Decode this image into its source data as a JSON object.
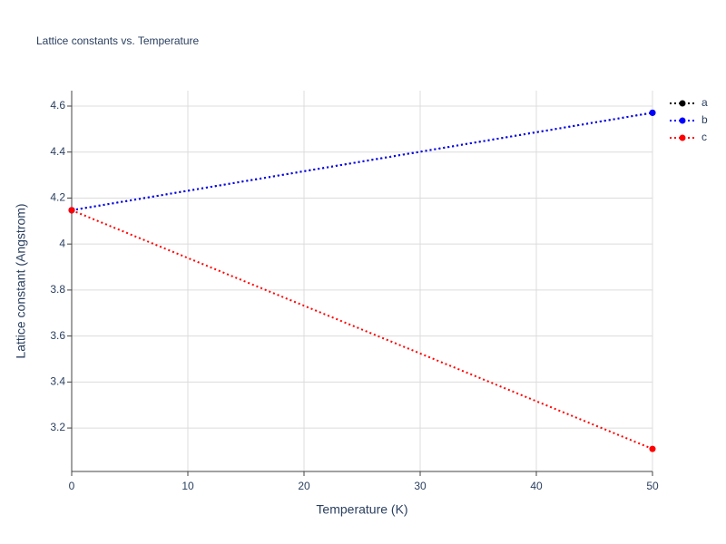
{
  "chart_data": {
    "type": "line",
    "title": "Lattice constants vs. Temperature",
    "x_label": "Temperature (K)",
    "y_label": "Lattice constant (Angstrom)",
    "x": [
      0,
      50
    ],
    "series": [
      {
        "name": "a",
        "color": "#000000",
        "values": [
          4.147,
          4.571
        ]
      },
      {
        "name": "b",
        "color": "#0000ff",
        "values": [
          4.147,
          4.571
        ]
      },
      {
        "name": "c",
        "color": "#ff0000",
        "values": [
          4.147,
          3.109
        ]
      }
    ],
    "xlim": [
      0,
      50
    ],
    "xticks": [
      0,
      10,
      20,
      30,
      40,
      50
    ],
    "ylim": [
      3.011,
      4.667
    ],
    "yticks": [
      3.2,
      3.4,
      3.6,
      3.8,
      4,
      4.2,
      4.4,
      4.6
    ],
    "grid": true,
    "legend": "top-right"
  }
}
